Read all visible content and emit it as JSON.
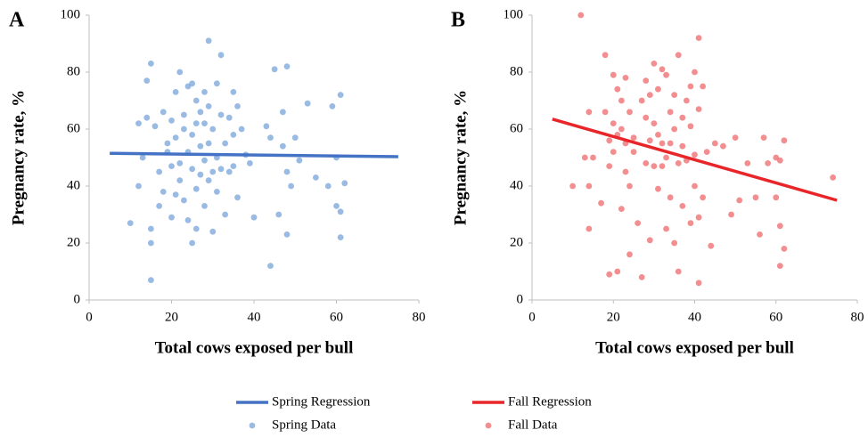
{
  "chart_data": [
    {
      "type": "scatter",
      "panel_label": "A",
      "xlabel": "Total cows exposed per bull",
      "ylabel": "Pregnancy rate, %",
      "xlim": [
        0,
        80
      ],
      "xticks": [
        0,
        20,
        40,
        60,
        80
      ],
      "ylim": [
        0,
        100
      ],
      "yticks": [
        0,
        20,
        40,
        60,
        80,
        100
      ],
      "grid": false,
      "series": [
        {
          "name": "Spring Regression",
          "kind": "line",
          "color": "#4472c4",
          "x": [
            5,
            75
          ],
          "values": [
            51.5,
            50.3
          ]
        },
        {
          "name": "Spring Data",
          "kind": "points",
          "color": "#7fa9dc",
          "x": [
            10,
            12,
            12,
            13,
            14,
            14,
            15,
            15,
            15,
            15,
            16,
            17,
            17,
            18,
            18,
            19,
            19,
            20,
            20,
            20,
            21,
            21,
            21,
            22,
            22,
            22,
            23,
            23,
            23,
            24,
            24,
            24,
            25,
            25,
            25,
            25,
            26,
            26,
            26,
            26,
            27,
            27,
            27,
            28,
            28,
            28,
            28,
            29,
            29,
            29,
            29,
            30,
            30,
            30,
            31,
            31,
            31,
            32,
            32,
            32,
            33,
            33,
            34,
            34,
            35,
            35,
            35,
            36,
            36,
            37,
            38,
            39,
            40,
            43,
            44,
            44,
            45,
            46,
            47,
            47,
            48,
            48,
            48,
            49,
            50,
            51,
            53,
            55,
            58,
            59,
            60,
            60,
            61,
            61,
            61,
            62
          ],
          "values": [
            27,
            40,
            62,
            50,
            77,
            64,
            83,
            7,
            20,
            25,
            61,
            45,
            33,
            66,
            38,
            55,
            52,
            63,
            47,
            29,
            73,
            57,
            37,
            80,
            48,
            42,
            65,
            60,
            35,
            75,
            52,
            28,
            76,
            58,
            46,
            20,
            70,
            62,
            39,
            25,
            66,
            54,
            44,
            73,
            62,
            49,
            33,
            91,
            68,
            55,
            42,
            60,
            45,
            24,
            76,
            50,
            38,
            86,
            65,
            46,
            55,
            30,
            64,
            45,
            73,
            58,
            47,
            68,
            36,
            60,
            51,
            48,
            29,
            61,
            12,
            57,
            81,
            30,
            66,
            54,
            82,
            45,
            23,
            40,
            57,
            49,
            69,
            43,
            40,
            68,
            50,
            33,
            31,
            72,
            22,
            41
          ]
        }
      ]
    },
    {
      "type": "scatter",
      "panel_label": "B",
      "xlabel": "Total cows exposed per bull",
      "ylabel": "Pregnancy rate, %",
      "xlim": [
        0,
        80
      ],
      "xticks": [
        0,
        20,
        40,
        60,
        80
      ],
      "ylim": [
        0,
        100
      ],
      "yticks": [
        0,
        20,
        40,
        60,
        80,
        100
      ],
      "grid": false,
      "series": [
        {
          "name": "Fall Regression",
          "kind": "line",
          "color": "#e8262a",
          "x": [
            5,
            75
          ],
          "values": [
            63.5,
            35
          ]
        },
        {
          "name": "Fall Data",
          "kind": "points",
          "color": "#f07274",
          "x": [
            10,
            12,
            13,
            14,
            14,
            14,
            15,
            17,
            18,
            18,
            19,
            19,
            19,
            20,
            20,
            20,
            21,
            21,
            21,
            22,
            22,
            22,
            23,
            23,
            23,
            24,
            24,
            24,
            25,
            25,
            26,
            27,
            27,
            28,
            28,
            28,
            29,
            29,
            29,
            30,
            30,
            30,
            31,
            31,
            31,
            32,
            32,
            32,
            33,
            33,
            33,
            34,
            34,
            34,
            35,
            35,
            35,
            36,
            36,
            36,
            37,
            37,
            37,
            38,
            38,
            39,
            39,
            39,
            40,
            40,
            40,
            41,
            41,
            41,
            41,
            42,
            42,
            43,
            44,
            45,
            47,
            49,
            50,
            51,
            53,
            55,
            56,
            57,
            58,
            60,
            60,
            61,
            61,
            61,
            62,
            62,
            74
          ],
          "values": [
            40,
            100,
            50,
            66,
            40,
            25,
            50,
            34,
            86,
            66,
            56,
            47,
            9,
            79,
            62,
            52,
            74,
            58,
            10,
            70,
            60,
            32,
            78,
            55,
            45,
            66,
            40,
            16,
            57,
            52,
            27,
            70,
            8,
            77,
            64,
            48,
            72,
            56,
            21,
            83,
            62,
            47,
            74,
            58,
            39,
            81,
            55,
            47,
            79,
            50,
            25,
            66,
            55,
            36,
            72,
            60,
            20,
            86,
            48,
            10,
            64,
            54,
            33,
            70,
            49,
            75,
            61,
            27,
            80,
            51,
            40,
            92,
            67,
            29,
            6,
            75,
            36,
            52,
            19,
            55,
            54,
            30,
            57,
            35,
            48,
            36,
            23,
            57,
            48,
            36,
            50,
            12,
            26,
            49,
            56,
            18,
            43
          ]
        }
      ]
    }
  ]
}
